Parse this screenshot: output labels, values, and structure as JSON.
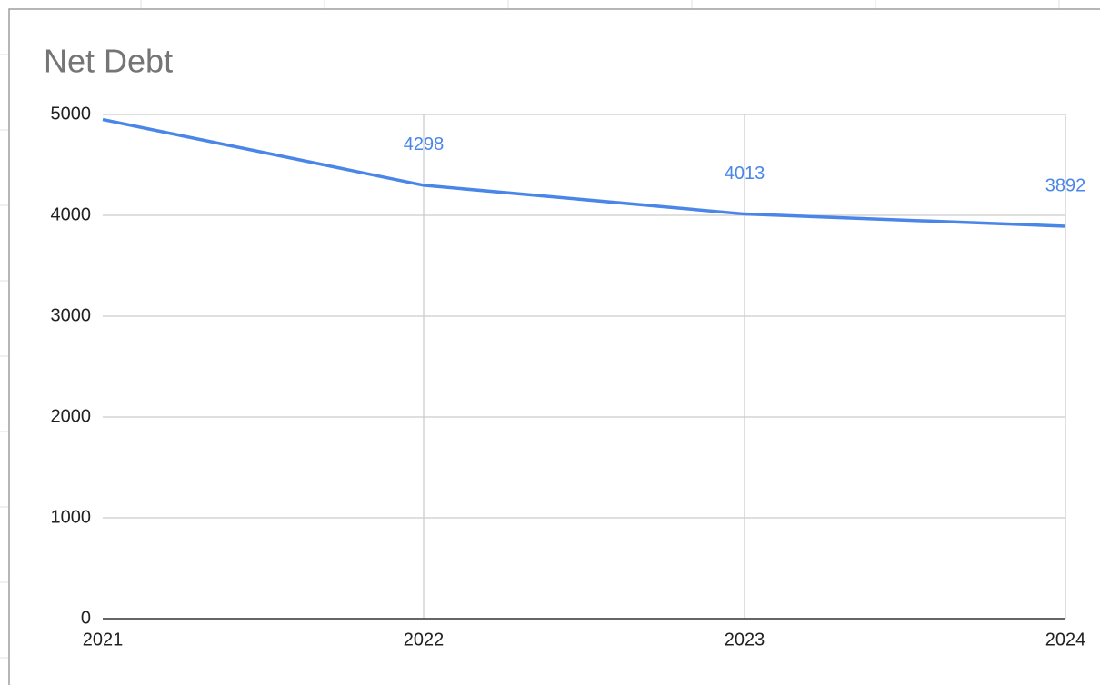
{
  "chart_data": {
    "type": "line",
    "title": "Net Debt",
    "x": [
      2021,
      2022,
      2023,
      2024
    ],
    "series": [
      {
        "name": "Net Debt",
        "color": "#4a86e8",
        "values": [
          4950,
          4298,
          4013,
          3892
        ],
        "value_labels": [
          null,
          "4298",
          "4013",
          "3892"
        ]
      }
    ],
    "xlim": [
      2021,
      2024
    ],
    "xticks": [
      2021,
      2022,
      2023,
      2024
    ],
    "ylim": [
      0,
      5000
    ],
    "yticks": [
      0,
      1000,
      2000,
      3000,
      4000,
      5000
    ],
    "grid": true
  }
}
